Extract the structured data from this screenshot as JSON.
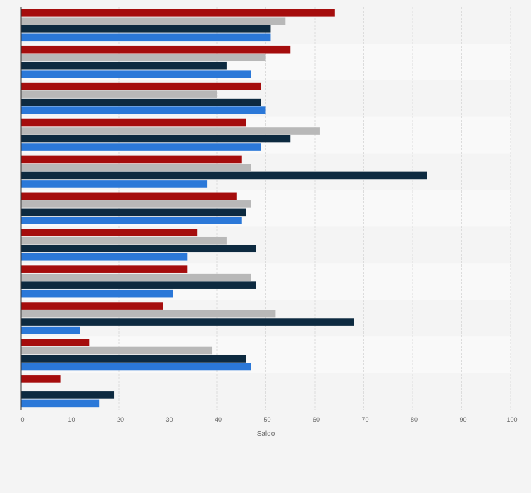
{
  "chart_data": {
    "type": "bar",
    "orientation": "horizontal",
    "xlabel": "Saldo",
    "ylabel": "",
    "xlim": [
      0,
      100
    ],
    "xticks": [
      0,
      10,
      20,
      30,
      40,
      50,
      60,
      70,
      80,
      90,
      100
    ],
    "grid": true,
    "legend": "none",
    "groups": 11,
    "series": [
      {
        "color": "#a50d0d",
        "values": [
          64,
          55,
          49,
          46,
          45,
          44,
          36,
          34,
          29,
          14,
          8
        ]
      },
      {
        "color": "#b8b8b8",
        "values": [
          54,
          50,
          40,
          61,
          47,
          47,
          42,
          47,
          52,
          39,
          null
        ]
      },
      {
        "color": "#0d2a40",
        "values": [
          51,
          42,
          49,
          55,
          83,
          46,
          48,
          48,
          68,
          46,
          19
        ]
      },
      {
        "color": "#2b78d8",
        "values": [
          51,
          47,
          50,
          49,
          38,
          45,
          34,
          31,
          12,
          47,
          16
        ]
      }
    ]
  }
}
